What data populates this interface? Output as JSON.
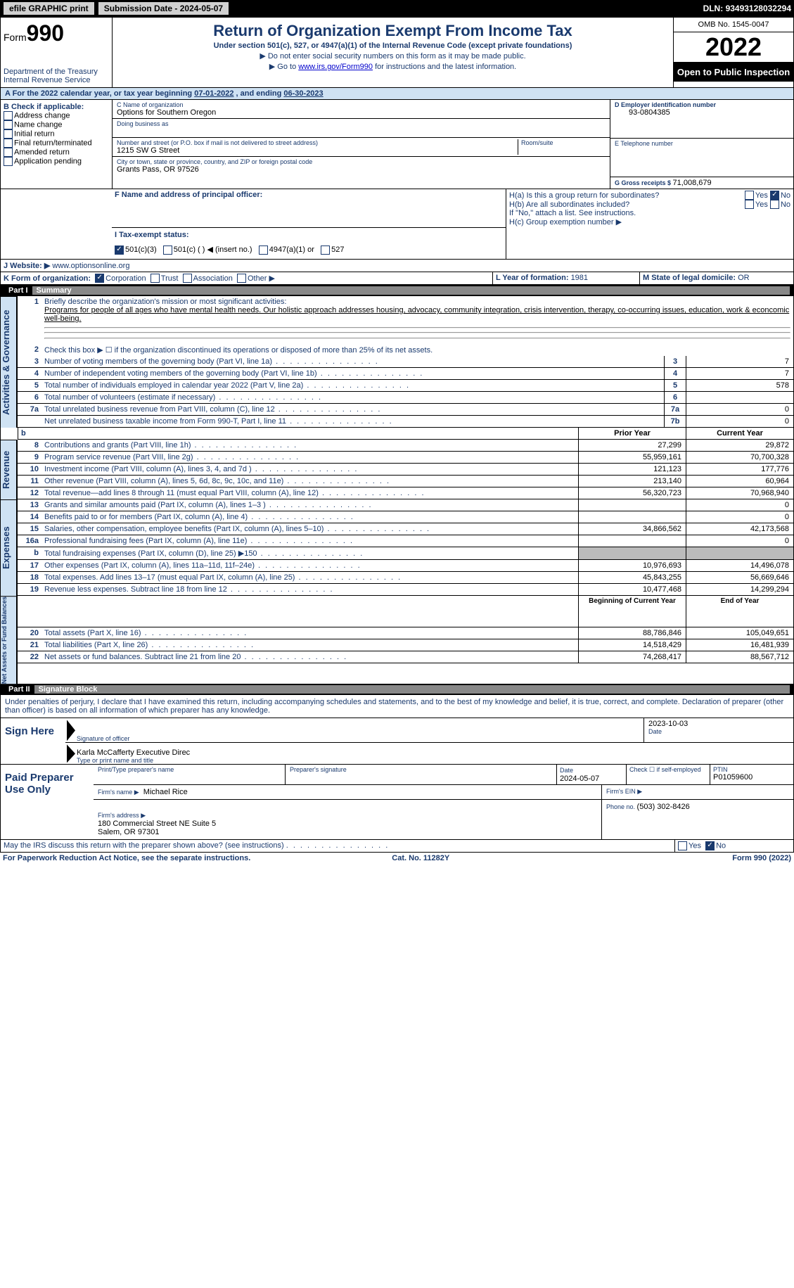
{
  "topbar": {
    "efile": "efile GRAPHIC print",
    "subdate_label": "Submission Date - ",
    "subdate": "2024-05-07",
    "dln_label": "DLN: ",
    "dln": "93493128032294"
  },
  "header": {
    "form_label": "Form",
    "form_no": "990",
    "dept": "Department of the Treasury\nInternal Revenue Service",
    "title": "Return of Organization Exempt From Income Tax",
    "subtitle": "Under section 501(c), 527, or 4947(a)(1) of the Internal Revenue Code (except private foundations)",
    "line1": "▶ Do not enter social security numbers on this form as it may be made public.",
    "line2_pre": "▶ Go to ",
    "line2_link": "www.irs.gov/Form990",
    "line2_post": " for instructions and the latest information.",
    "omb": "OMB No. 1545-0047",
    "year": "2022",
    "otp": "Open to Public Inspection"
  },
  "A": {
    "text_pre": "A For the 2022 calendar year, or tax year beginning ",
    "begin": "07-01-2022",
    "mid": " , and ending ",
    "end": "06-30-2023"
  },
  "B": {
    "label": "B Check if applicable:",
    "items": [
      "Address change",
      "Name change",
      "Initial return",
      "Final return/terminated",
      "Amended return",
      "Application pending"
    ]
  },
  "C": {
    "name_label": "C Name of organization",
    "name": "Options for Southern Oregon",
    "dba_label": "Doing business as",
    "addr_label": "Number and street (or P.O. box if mail is not delivered to street address)",
    "room_label": "Room/suite",
    "street": "1215 SW G Street",
    "city_label": "City or town, state or province, country, and ZIP or foreign postal code",
    "city": "Grants Pass, OR  97526"
  },
  "D": {
    "label": "D Employer identification number",
    "val": "93-0804385"
  },
  "E": {
    "label": "E Telephone number",
    "val": ""
  },
  "G": {
    "label": "G Gross receipts $ ",
    "val": "71,008,679"
  },
  "F": {
    "label": "F Name and address of principal officer:",
    "val": ""
  },
  "H": {
    "a": "H(a)  Is this a group return for subordinates?",
    "b": "H(b)  Are all subordinates included?",
    "note": "If \"No,\" attach a list. See instructions.",
    "c": "H(c)  Group exemption number ▶",
    "yes": "Yes",
    "no": "No",
    "a_no_checked": true
  },
  "I": {
    "label": "I   Tax-exempt status:",
    "opts": [
      "501(c)(3)",
      "501(c) (  ) ◀ (insert no.)",
      "4947(a)(1) or",
      "527"
    ],
    "checked": 0
  },
  "J": {
    "label": "J   Website: ▶ ",
    "val": "www.optionsonline.org"
  },
  "K": {
    "label": "K Form of organization:",
    "opts": [
      "Corporation",
      "Trust",
      "Association",
      "Other ▶"
    ],
    "checked": 0
  },
  "L": {
    "label": "L Year of formation: ",
    "val": "1981"
  },
  "M": {
    "label": "M State of legal domicile: ",
    "val": "OR"
  },
  "parts": {
    "p1": {
      "num": "Part I",
      "title": "Summary"
    },
    "p2": {
      "num": "Part II",
      "title": "Signature Block"
    }
  },
  "summary": {
    "line1_label": "Briefly describe the organization's mission or most significant activities:",
    "line1_val": "Programs for people of all ages who have mental health needs. Our holistic approach addresses housing, advocacy, community integration, crisis intervention, therapy, co-occurring issues, education, work & econcomic well-being.",
    "line2": "Check this box ▶ ☐  if the organization discontinued its operations or disposed of more than 25% of its net assets.",
    "tabs": {
      "ag": "Activities & Governance",
      "rev": "Revenue",
      "exp": "Expenses",
      "na": "Net Assets or Fund Balances"
    },
    "col_prior": "Prior Year",
    "col_curr": "Current Year",
    "col_boy": "Beginning of Current Year",
    "col_eoy": "End of Year",
    "rows_ag": [
      {
        "n": "3",
        "d": "Number of voting members of the governing body (Part VI, line 1a)",
        "box": "3",
        "v": "7"
      },
      {
        "n": "4",
        "d": "Number of independent voting members of the governing body (Part VI, line 1b)",
        "box": "4",
        "v": "7"
      },
      {
        "n": "5",
        "d": "Total number of individuals employed in calendar year 2022 (Part V, line 2a)",
        "box": "5",
        "v": "578"
      },
      {
        "n": "6",
        "d": "Total number of volunteers (estimate if necessary)",
        "box": "6",
        "v": ""
      },
      {
        "n": "7a",
        "d": "Total unrelated business revenue from Part VIII, column (C), line 12",
        "box": "7a",
        "v": "0"
      },
      {
        "n": "",
        "d": "Net unrelated business taxable income from Form 990-T, Part I, line 11",
        "box": "7b",
        "v": "0"
      }
    ],
    "rows_rev": [
      {
        "n": "8",
        "d": "Contributions and grants (Part VIII, line 1h)",
        "p": "27,299",
        "c": "29,872"
      },
      {
        "n": "9",
        "d": "Program service revenue (Part VIII, line 2g)",
        "p": "55,959,161",
        "c": "70,700,328"
      },
      {
        "n": "10",
        "d": "Investment income (Part VIII, column (A), lines 3, 4, and 7d )",
        "p": "121,123",
        "c": "177,776"
      },
      {
        "n": "11",
        "d": "Other revenue (Part VIII, column (A), lines 5, 6d, 8c, 9c, 10c, and 11e)",
        "p": "213,140",
        "c": "60,964"
      },
      {
        "n": "12",
        "d": "Total revenue—add lines 8 through 11 (must equal Part VIII, column (A), line 12)",
        "p": "56,320,723",
        "c": "70,968,940"
      }
    ],
    "rows_exp": [
      {
        "n": "13",
        "d": "Grants and similar amounts paid (Part IX, column (A), lines 1–3 )",
        "p": "",
        "c": "0"
      },
      {
        "n": "14",
        "d": "Benefits paid to or for members (Part IX, column (A), line 4)",
        "p": "",
        "c": "0"
      },
      {
        "n": "15",
        "d": "Salaries, other compensation, employee benefits (Part IX, column (A), lines 5–10)",
        "p": "34,866,562",
        "c": "42,173,568"
      },
      {
        "n": "16a",
        "d": "Professional fundraising fees (Part IX, column (A), line 11e)",
        "p": "",
        "c": "0"
      },
      {
        "n": "b",
        "d": "Total fundraising expenses (Part IX, column (D), line 25) ▶150",
        "p": "gray",
        "c": "gray"
      },
      {
        "n": "17",
        "d": "Other expenses (Part IX, column (A), lines 11a–11d, 11f–24e)",
        "p": "10,976,693",
        "c": "14,496,078"
      },
      {
        "n": "18",
        "d": "Total expenses. Add lines 13–17 (must equal Part IX, column (A), line 25)",
        "p": "45,843,255",
        "c": "56,669,646"
      },
      {
        "n": "19",
        "d": "Revenue less expenses. Subtract line 18 from line 12",
        "p": "10,477,468",
        "c": "14,299,294"
      }
    ],
    "rows_na": [
      {
        "n": "20",
        "d": "Total assets (Part X, line 16)",
        "p": "88,786,846",
        "c": "105,049,651"
      },
      {
        "n": "21",
        "d": "Total liabilities (Part X, line 26)",
        "p": "14,518,429",
        "c": "16,481,939"
      },
      {
        "n": "22",
        "d": "Net assets or fund balances. Subtract line 21 from line 20",
        "p": "74,268,417",
        "c": "88,567,712"
      }
    ]
  },
  "sig": {
    "declare": "Under penalties of perjury, I declare that I have examined this return, including accompanying schedules and statements, and to the best of my knowledge and belief, it is true, correct, and complete. Declaration of preparer (other than officer) is based on all information of which preparer has any knowledge.",
    "sign_here": "Sign Here",
    "sig_officer": "Signature of officer",
    "date": "Date",
    "sig_date": "2023-10-03",
    "typed": "Karla McCafferty  Executive Direc",
    "typed_label": "Type or print name and title",
    "paid": "Paid Preparer Use Only",
    "pp_name_label": "Print/Type preparer's name",
    "pp_sig_label": "Preparer's signature",
    "pp_date_label": "Date",
    "pp_date": "2024-05-07",
    "pp_check": "Check ☐ if self-employed",
    "ptin_label": "PTIN",
    "ptin": "P01059600",
    "firm_name_label": "Firm's name    ▶",
    "firm_name": "Michael Rice",
    "firm_ein": "Firm's EIN ▶",
    "firm_addr_label": "Firm's address ▶",
    "firm_addr": "180 Commercial Street NE Suite 5\nSalem, OR  97301",
    "phone_label": "Phone no. ",
    "phone": "(503) 302-8426",
    "discuss": "May the IRS discuss this return with the preparer shown above? (see instructions)",
    "discuss_no_checked": true
  },
  "footer": {
    "pra": "For Paperwork Reduction Act Notice, see the separate instructions.",
    "cat": "Cat. No. 11282Y",
    "form": "Form 990 (2022)"
  }
}
